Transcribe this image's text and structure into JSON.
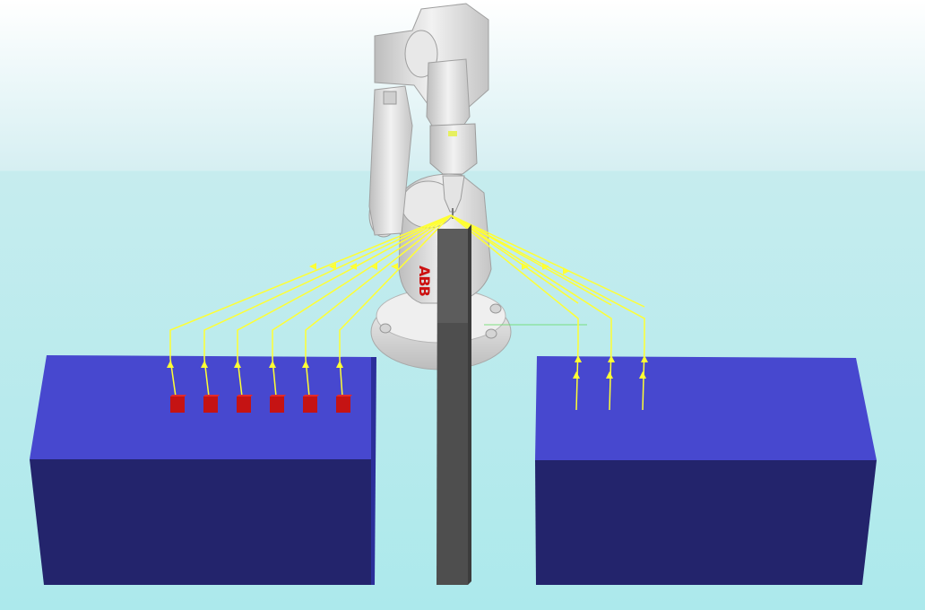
{
  "viewport": {
    "sky_color": "#ffffff",
    "floor_color": "#ace9ec"
  },
  "robot": {
    "brand_label": "ABB",
    "body_color": "#e2e2e2",
    "brand_color": "#cc1111"
  },
  "tables": {
    "top_color": "#4748cf",
    "front_color": "#23246c",
    "side_color": "#2b2e9a"
  },
  "pillar": {
    "color": "#4e4e4e"
  },
  "targets": {
    "color": "#d31515",
    "count_left": 6,
    "count_right": 3
  },
  "paths": {
    "color": "#ffff33"
  }
}
